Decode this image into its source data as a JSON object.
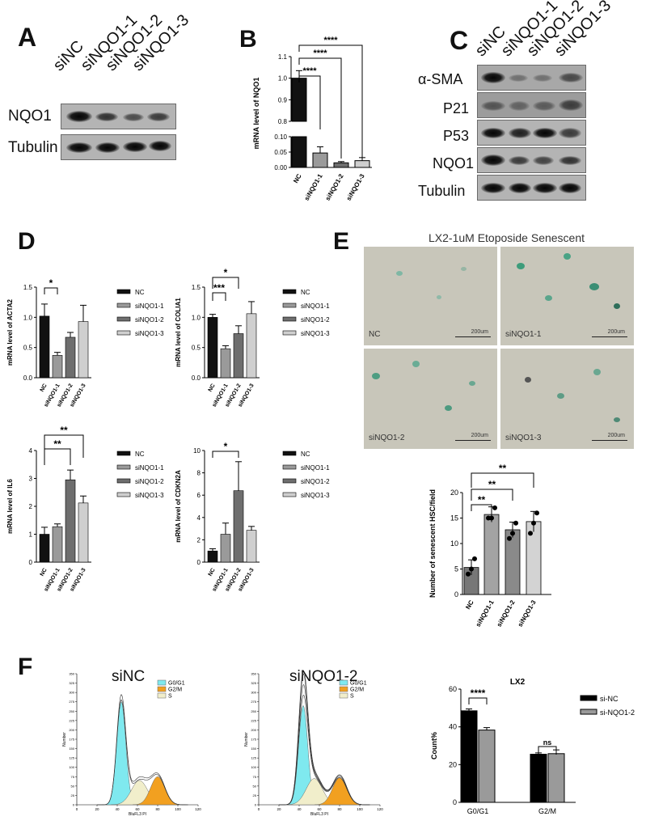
{
  "colors": {
    "nc": "#111111",
    "si1": "#9a9a9a",
    "si2": "#6e6e6e",
    "si3": "#cfcfcf",
    "g0g1": "#7fe9ef",
    "g2m": "#f2a020",
    "s": "#f1eecb"
  },
  "panelA": {
    "letter": "A",
    "lanes": [
      "siNC",
      "siNQO1-1",
      "siNQO1-2",
      "siNQO1-3"
    ],
    "rows": [
      "NQO1",
      "Tubulin"
    ]
  },
  "panelB": {
    "letter": "B",
    "ylabel": "mRNA level of NQO1",
    "categories": [
      "NC",
      "siNQO1-1",
      "siNQO1-2",
      "siNQO1-3"
    ],
    "sig": [
      "****",
      "****",
      "****"
    ],
    "yticks_upper": [
      "0.8",
      "0.9",
      "1.0",
      "1.1"
    ],
    "yticks_lower": [
      "0.00",
      "0.05",
      "0.10"
    ]
  },
  "panelC": {
    "letter": "C",
    "lanes": [
      "siNC",
      "siNQO1-1",
      "siNQO1-2",
      "siNQO1-3"
    ],
    "rows": [
      "α-SMA",
      "P21",
      "P53",
      "NQO1",
      "Tubulin"
    ]
  },
  "panelD": {
    "letter": "D",
    "legend": [
      "NC",
      "siNQO1-1",
      "siNQO1-2",
      "siNQO1-3"
    ],
    "charts": [
      {
        "ylabel": "mRNA level of ACTA2",
        "yticks": [
          "0.0",
          "0.5",
          "1.0",
          "1.5"
        ],
        "sig": [
          "*"
        ]
      },
      {
        "ylabel": "mRNA level of COLIA1",
        "yticks": [
          "0.0",
          "0.5",
          "1.0",
          "1.5"
        ],
        "sig": [
          "***",
          "*"
        ]
      },
      {
        "ylabel": "mRNA level of IL6",
        "yticks": [
          "0",
          "1",
          "2",
          "3",
          "4"
        ],
        "sig": [
          "**",
          "**"
        ]
      },
      {
        "ylabel": "mRNA level of CDKN2A",
        "yticks": [
          "0",
          "2",
          "4",
          "6",
          "8",
          "10"
        ],
        "sig": [
          "*"
        ]
      }
    ],
    "xcats": [
      "NC",
      "siNQO1-1",
      "siNQO1-2",
      "siNQO1-3"
    ]
  },
  "panelE": {
    "letter": "E",
    "title": "LX2-1uM Etoposide Senescent",
    "images": [
      {
        "label": "NC",
        "scale": "200um"
      },
      {
        "label": "siNQO1-1",
        "scale": "200um"
      },
      {
        "label": "siNQO1-2",
        "scale": "200um"
      },
      {
        "label": "siNQO1-3",
        "scale": "200um"
      }
    ],
    "ylabel": "Number of senescent HSC/field",
    "yticks": [
      "0",
      "5",
      "10",
      "15",
      "20"
    ],
    "sig": [
      "**",
      "**",
      "**"
    ],
    "xcats": [
      "NC",
      "siNQO1-1",
      "siNQO1-2",
      "siNQO1-3"
    ]
  },
  "panelF": {
    "letter": "F",
    "hist_titles": [
      "siNC",
      "siNQO1-2"
    ],
    "hist_legend": [
      "G0/G1",
      "G2/M",
      "S"
    ],
    "hist_xlabel": "BluFL3 PI",
    "hist_ylabel": "Number",
    "hist_xticks": [
      "0",
      "20",
      "40",
      "60",
      "80",
      "100",
      "120"
    ],
    "hist_yticks": [
      "0",
      "25",
      "50",
      "75",
      "100",
      "125",
      "150",
      "175",
      "200",
      "225",
      "250",
      "275",
      "300",
      "325",
      "350"
    ],
    "bar_title": "LX2",
    "bar_ylabel": "Count%",
    "bar_yticks": [
      "0",
      "20",
      "40",
      "60"
    ],
    "bar_legend": [
      "si-NC",
      "si-NQO1-2"
    ],
    "bar_sig": [
      "****",
      "ns"
    ]
  },
  "chart_data": [
    {
      "type": "bar",
      "title": "",
      "ylabel": "mRNA level of NQO1",
      "categories": [
        "NC",
        "siNQO1-1",
        "siNQO1-2",
        "siNQO1-3"
      ],
      "values": [
        1.0,
        0.047,
        0.015,
        0.022
      ],
      "errors": [
        0.035,
        0.02,
        0.004,
        0.01
      ]
    },
    {
      "type": "bar",
      "ylabel": "mRNA level of ACTA2",
      "categories": [
        "NC",
        "siNQO1-1",
        "siNQO1-2",
        "siNQO1-3"
      ],
      "values": [
        1.02,
        0.37,
        0.67,
        0.93
      ],
      "errors": [
        0.2,
        0.05,
        0.08,
        0.27
      ],
      "ylim": [
        0,
        1.5
      ]
    },
    {
      "type": "bar",
      "ylabel": "mRNA level of COLIA1",
      "categories": [
        "NC",
        "siNQO1-1",
        "siNQO1-2",
        "siNQO1-3"
      ],
      "values": [
        1.0,
        0.48,
        0.73,
        1.06
      ],
      "errors": [
        0.05,
        0.05,
        0.13,
        0.2
      ],
      "ylim": [
        0,
        1.5
      ]
    },
    {
      "type": "bar",
      "ylabel": "mRNA level of IL6",
      "categories": [
        "NC",
        "siNQO1-1",
        "siNQO1-2",
        "siNQO1-3"
      ],
      "values": [
        1.0,
        1.27,
        2.95,
        2.12
      ],
      "errors": [
        0.25,
        0.1,
        0.35,
        0.25
      ],
      "ylim": [
        0,
        4
      ]
    },
    {
      "type": "bar",
      "ylabel": "mRNA level of CDKN2A",
      "categories": [
        "NC",
        "siNQO1-1",
        "siNQO1-2",
        "siNQO1-3"
      ],
      "values": [
        1.0,
        2.5,
        6.4,
        2.85
      ],
      "errors": [
        0.2,
        1.0,
        2.6,
        0.35
      ],
      "ylim": [
        0,
        10
      ]
    },
    {
      "type": "bar",
      "ylabel": "Number of senescent HSC/field",
      "categories": [
        "NC",
        "siNQO1-1",
        "siNQO1-2",
        "siNQO1-3"
      ],
      "values": [
        5.3,
        15.7,
        12.7,
        14.3
      ],
      "errors": [
        1.5,
        1.5,
        1.5,
        2.0
      ],
      "ylim": [
        0,
        20
      ],
      "points": [
        [
          4,
          5,
          7
        ],
        [
          15,
          15,
          17
        ],
        [
          11,
          12,
          14
        ],
        [
          12,
          14,
          16
        ]
      ]
    },
    {
      "type": "bar",
      "title": "LX2",
      "ylabel": "Count%",
      "categories": [
        "G0/G1",
        "G2/M"
      ],
      "ylim": [
        0,
        60
      ],
      "series": [
        {
          "name": "si-NC",
          "values": [
            48.5,
            25.5
          ],
          "errors": [
            1,
            0.7
          ]
        },
        {
          "name": "si-NQO1-2",
          "values": [
            38.3,
            25.8
          ],
          "errors": [
            1.3,
            2
          ]
        }
      ]
    }
  ]
}
